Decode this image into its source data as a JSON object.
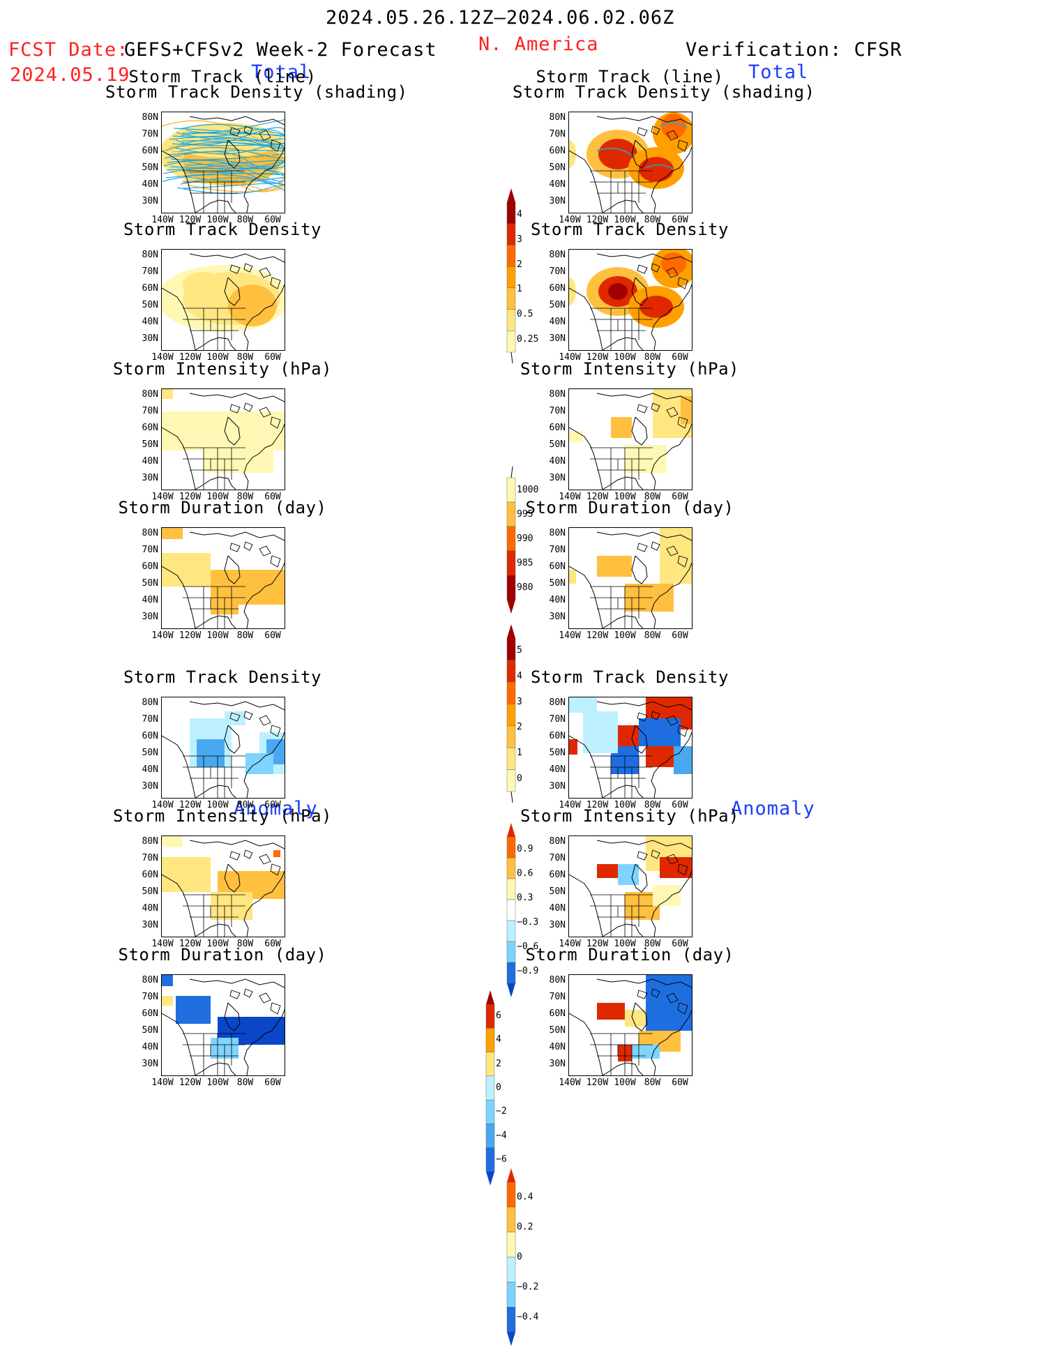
{
  "header": {
    "period": "2024.05.26.12Z–2024.06.02.06Z",
    "region": "N. America",
    "fcst_label": "FCST Date:",
    "fcst_date": "2024.05.19",
    "model": "GEFS+CFSv2 Week-2 Forecast",
    "verification": "Verification: CFSR"
  },
  "sections": {
    "total_left": "Total",
    "total_right": "Total",
    "anomaly_left": "Anomaly",
    "anomaly_right": "Anomaly"
  },
  "panel_titles": {
    "track_line": "Storm Track (line)",
    "track_shading": "Storm Track Density (shading)",
    "density": "Storm Track Density",
    "intensity": "Storm Intensity (hPa)",
    "duration": "Storm Duration (day)"
  },
  "axes": {
    "lat_ticks": [
      "80N",
      "70N",
      "60N",
      "50N",
      "40N",
      "30N"
    ],
    "lon_ticks": [
      "140W",
      "120W",
      "100W",
      "80W",
      "60W"
    ]
  },
  "colors": {
    "warm": [
      "#fff8b4",
      "#ffe680",
      "#ffc040",
      "#ffa000",
      "#ff6a00",
      "#e02800",
      "#a00000"
    ],
    "cool": [
      "#bdf0ff",
      "#7fd4ff",
      "#4aa8f0",
      "#1e6ee0",
      "#0a46c8"
    ],
    "track_line": "#20a8e0"
  },
  "colorbars": {
    "density_total": [
      "4",
      "3",
      "2",
      "1",
      "0.5",
      "0.25"
    ],
    "intensity_total": [
      "1000",
      "995",
      "990",
      "985",
      "980"
    ],
    "duration_total": [
      "5",
      "4",
      "3",
      "2",
      "1",
      "0"
    ],
    "density_anom": [
      "0.9",
      "0.6",
      "0.3",
      "−0.3",
      "−0.6",
      "−0.9"
    ],
    "intensity_anom": [
      "6",
      "4",
      "2",
      "0",
      "−2",
      "−4",
      "−6"
    ],
    "duration_anom": [
      "0.4",
      "0.2",
      "0",
      "−0.2",
      "−0.4"
    ]
  },
  "chart_data": [
    {
      "type": "heatmap",
      "panel": "forecast-total-track",
      "title": "Storm Track (line) / Storm Track Density (shading)",
      "levels": [
        "0.25",
        "0.5",
        "1",
        "2",
        "3",
        "4"
      ]
    },
    {
      "type": "heatmap",
      "panel": "verification-total-track",
      "title": "Storm Track (line) / Storm Track Density (shading)",
      "levels": [
        "0.25",
        "0.5",
        "1",
        "2",
        "3",
        "4"
      ]
    },
    {
      "type": "heatmap",
      "panel": "forecast-total-density",
      "title": "Storm Track Density",
      "levels": [
        "0.25",
        "0.5",
        "1",
        "2",
        "3",
        "4"
      ]
    },
    {
      "type": "heatmap",
      "panel": "verification-total-density",
      "title": "Storm Track Density",
      "levels": [
        "0.25",
        "0.5",
        "1",
        "2",
        "3",
        "4"
      ]
    },
    {
      "type": "heatmap",
      "panel": "forecast-total-intensity",
      "title": "Storm Intensity (hPa)",
      "levels": [
        "980",
        "985",
        "990",
        "995",
        "1000"
      ]
    },
    {
      "type": "heatmap",
      "panel": "verification-total-intensity",
      "title": "Storm Intensity (hPa)",
      "levels": [
        "980",
        "985",
        "990",
        "995",
        "1000"
      ]
    },
    {
      "type": "heatmap",
      "panel": "forecast-total-duration",
      "title": "Storm Duration (day)",
      "levels": [
        "0",
        "1",
        "2",
        "3",
        "4",
        "5"
      ]
    },
    {
      "type": "heatmap",
      "panel": "verification-total-duration",
      "title": "Storm Duration (day)",
      "levels": [
        "0",
        "1",
        "2",
        "3",
        "4",
        "5"
      ]
    },
    {
      "type": "heatmap",
      "panel": "forecast-anom-density",
      "title": "Storm Track Density",
      "levels": [
        "-0.9",
        "-0.6",
        "-0.3",
        "0.3",
        "0.6",
        "0.9"
      ]
    },
    {
      "type": "heatmap",
      "panel": "verification-anom-density",
      "title": "Storm Track Density",
      "levels": [
        "-0.9",
        "-0.6",
        "-0.3",
        "0.3",
        "0.6",
        "0.9"
      ]
    },
    {
      "type": "heatmap",
      "panel": "forecast-anom-intensity",
      "title": "Storm Intensity (hPa)",
      "levels": [
        "-6",
        "-4",
        "-2",
        "0",
        "2",
        "4",
        "6"
      ]
    },
    {
      "type": "heatmap",
      "panel": "verification-anom-intensity",
      "title": "Storm Intensity (hPa)",
      "levels": [
        "-6",
        "-4",
        "-2",
        "0",
        "2",
        "4",
        "6"
      ]
    },
    {
      "type": "heatmap",
      "panel": "forecast-anom-duration",
      "title": "Storm Duration (day)",
      "levels": [
        "-0.4",
        "-0.2",
        "0",
        "0.2",
        "0.4"
      ]
    },
    {
      "type": "heatmap",
      "panel": "verification-anom-duration",
      "title": "Storm Duration (day)",
      "levels": [
        "-0.4",
        "-0.2",
        "0",
        "0.2",
        "0.4"
      ]
    }
  ]
}
